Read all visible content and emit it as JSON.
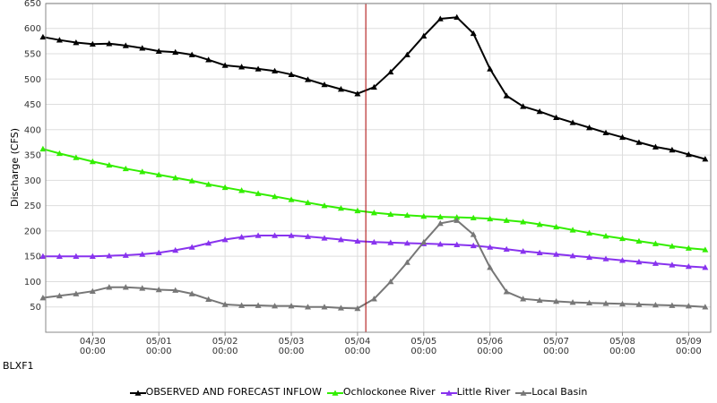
{
  "station_label": "BLXF1",
  "chart_data": {
    "type": "line",
    "xlabel": "",
    "ylabel": "Discharge (CFS)",
    "ylim": [
      0,
      650
    ],
    "y_ticks": [
      50,
      100,
      150,
      200,
      250,
      300,
      350,
      400,
      450,
      500,
      550,
      600,
      650
    ],
    "x_range": [
      "04/29 07:00",
      "05/09 08:00"
    ],
    "x_ticks": [
      {
        "date": "04/30",
        "time": "00:00"
      },
      {
        "date": "05/01",
        "time": "00:00"
      },
      {
        "date": "05/02",
        "time": "00:00"
      },
      {
        "date": "05/03",
        "time": "00:00"
      },
      {
        "date": "05/04",
        "time": "00:00"
      },
      {
        "date": "05/05",
        "time": "00:00"
      },
      {
        "date": "05/06",
        "time": "00:00"
      },
      {
        "date": "05/07",
        "time": "00:00"
      },
      {
        "date": "05/08",
        "time": "00:00"
      },
      {
        "date": "05/09",
        "time": "00:00"
      }
    ],
    "grid": true,
    "legend_position": "bottom",
    "forecast_marker": "05/04 03:00",
    "series": [
      {
        "name": "OBSERVED AND FORECAST INFLOW",
        "color": "#000000",
        "marker": "triangle",
        "x": [
          "04/29 06:00",
          "04/29 12:00",
          "04/29 18:00",
          "04/30 00:00",
          "04/30 06:00",
          "04/30 12:00",
          "04/30 18:00",
          "05/01 00:00",
          "05/01 06:00",
          "05/01 12:00",
          "05/01 18:00",
          "05/02 00:00",
          "05/02 06:00",
          "05/02 12:00",
          "05/02 18:00",
          "05/03 00:00",
          "05/03 06:00",
          "05/03 12:00",
          "05/03 18:00",
          "05/04 00:00",
          "05/04 06:00",
          "05/04 12:00",
          "05/04 18:00",
          "05/05 00:00",
          "05/05 06:00",
          "05/05 12:00",
          "05/05 18:00",
          "05/06 00:00",
          "05/06 06:00",
          "05/06 12:00",
          "05/06 18:00",
          "05/07 00:00",
          "05/07 06:00",
          "05/07 12:00",
          "05/07 18:00",
          "05/08 00:00",
          "05/08 06:00",
          "05/08 12:00",
          "05/08 18:00",
          "05/09 00:00",
          "05/09 06:00"
        ],
        "y": [
          583,
          577,
          572,
          569,
          570,
          566,
          561,
          555,
          553,
          548,
          538,
          527,
          524,
          520,
          516,
          509,
          499,
          489,
          480,
          471,
          484,
          514,
          548,
          585,
          619,
          622,
          590,
          520,
          467,
          446,
          436,
          424,
          414,
          404,
          394,
          385,
          375,
          366,
          360,
          351,
          342
        ]
      },
      {
        "name": "Ochlockonee River",
        "color": "#33ee00",
        "marker": "triangle",
        "x": [
          "04/29 06:00",
          "04/29 12:00",
          "04/29 18:00",
          "04/30 00:00",
          "04/30 06:00",
          "04/30 12:00",
          "04/30 18:00",
          "05/01 00:00",
          "05/01 06:00",
          "05/01 12:00",
          "05/01 18:00",
          "05/02 00:00",
          "05/02 06:00",
          "05/02 12:00",
          "05/02 18:00",
          "05/03 00:00",
          "05/03 06:00",
          "05/03 12:00",
          "05/03 18:00",
          "05/04 00:00",
          "05/04 06:00",
          "05/04 12:00",
          "05/04 18:00",
          "05/05 00:00",
          "05/05 06:00",
          "05/05 12:00",
          "05/05 18:00",
          "05/06 00:00",
          "05/06 06:00",
          "05/06 12:00",
          "05/06 18:00",
          "05/07 00:00",
          "05/07 06:00",
          "05/07 12:00",
          "05/07 18:00",
          "05/08 00:00",
          "05/08 06:00",
          "05/08 12:00",
          "05/08 18:00",
          "05/09 00:00",
          "05/09 06:00"
        ],
        "y": [
          362,
          353,
          345,
          337,
          330,
          323,
          317,
          311,
          305,
          299,
          292,
          286,
          280,
          274,
          268,
          262,
          256,
          250,
          245,
          240,
          236,
          233,
          231,
          229,
          228,
          227,
          226,
          224,
          221,
          218,
          213,
          208,
          202,
          196,
          190,
          185,
          180,
          175,
          170,
          166,
          163
        ]
      },
      {
        "name": "Little River",
        "color": "#8833ee",
        "marker": "triangle",
        "x": [
          "04/29 06:00",
          "04/29 12:00",
          "04/29 18:00",
          "04/30 00:00",
          "04/30 06:00",
          "04/30 12:00",
          "04/30 18:00",
          "05/01 00:00",
          "05/01 06:00",
          "05/01 12:00",
          "05/01 18:00",
          "05/02 00:00",
          "05/02 06:00",
          "05/02 12:00",
          "05/02 18:00",
          "05/03 00:00",
          "05/03 06:00",
          "05/03 12:00",
          "05/03 18:00",
          "05/04 00:00",
          "05/04 06:00",
          "05/04 12:00",
          "05/04 18:00",
          "05/05 00:00",
          "05/05 06:00",
          "05/05 12:00",
          "05/05 18:00",
          "05/06 00:00",
          "05/06 06:00",
          "05/06 12:00",
          "05/06 18:00",
          "05/07 00:00",
          "05/07 06:00",
          "05/07 12:00",
          "05/07 18:00",
          "05/08 00:00",
          "05/08 06:00",
          "05/08 12:00",
          "05/08 18:00",
          "05/09 00:00",
          "05/09 06:00"
        ],
        "y": [
          150,
          150,
          150,
          150,
          151,
          152,
          154,
          157,
          162,
          168,
          176,
          183,
          188,
          191,
          191,
          191,
          189,
          186,
          183,
          180,
          178,
          177,
          176,
          175,
          174,
          173,
          171,
          168,
          164,
          160,
          157,
          154,
          151,
          148,
          145,
          142,
          139,
          136,
          133,
          130,
          128
        ]
      },
      {
        "name": "Local Basin",
        "color": "#777777",
        "marker": "triangle",
        "x": [
          "04/29 06:00",
          "04/29 12:00",
          "04/29 18:00",
          "04/30 00:00",
          "04/30 06:00",
          "04/30 12:00",
          "04/30 18:00",
          "05/01 00:00",
          "05/01 06:00",
          "05/01 12:00",
          "05/01 18:00",
          "05/02 00:00",
          "05/02 06:00",
          "05/02 12:00",
          "05/02 18:00",
          "05/03 00:00",
          "05/03 06:00",
          "05/03 12:00",
          "05/03 18:00",
          "05/04 00:00",
          "05/04 06:00",
          "05/04 12:00",
          "05/04 18:00",
          "05/05 00:00",
          "05/05 06:00",
          "05/05 12:00",
          "05/05 18:00",
          "05/06 00:00",
          "05/06 06:00",
          "05/06 12:00",
          "05/06 18:00",
          "05/07 00:00",
          "05/07 06:00",
          "05/07 12:00",
          "05/07 18:00",
          "05/08 00:00",
          "05/08 06:00",
          "05/08 12:00",
          "05/08 18:00",
          "05/09 00:00",
          "05/09 06:00"
        ],
        "y": [
          68,
          72,
          76,
          81,
          89,
          89,
          87,
          84,
          83,
          76,
          65,
          55,
          53,
          53,
          52,
          52,
          50,
          50,
          48,
          47,
          66,
          100,
          138,
          178,
          215,
          221,
          193,
          128,
          80,
          66,
          63,
          61,
          59,
          58,
          57,
          56,
          55,
          54,
          53,
          52,
          50
        ]
      }
    ]
  }
}
